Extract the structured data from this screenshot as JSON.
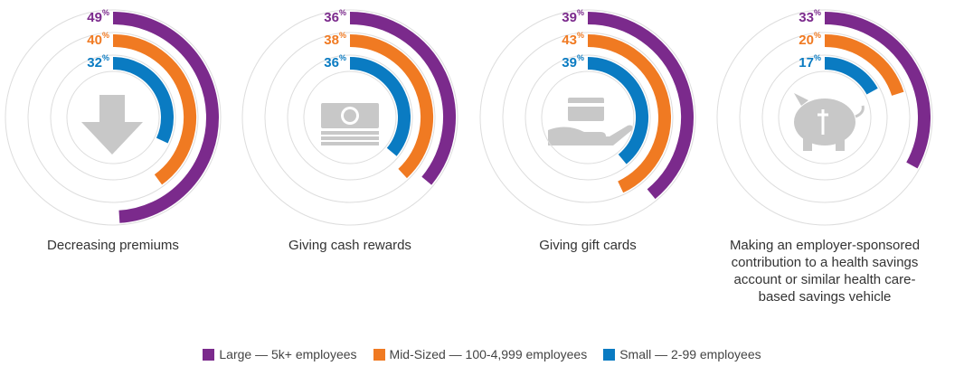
{
  "chart_data": {
    "type": "radial_bar",
    "categories": [
      "Decreasing premiums",
      "Giving cash rewards",
      "Giving gift cards",
      "Making an employer-sponsored contribution to a health savings account or similar health care-based savings vehicle"
    ],
    "unit": "%",
    "ylim": [
      0,
      100
    ],
    "series": [
      {
        "name": "Large — 5k+ employees",
        "color": "#7b2a8c",
        "values": [
          49,
          36,
          39,
          33
        ]
      },
      {
        "name": "Mid-Sized — 100-4,999 employees",
        "color": "#f07a22",
        "values": [
          40,
          38,
          43,
          20
        ]
      },
      {
        "name": "Small — 2-99 employees",
        "color": "#0a7bc2",
        "values": [
          32,
          36,
          39,
          17
        ]
      }
    ]
  }
}
